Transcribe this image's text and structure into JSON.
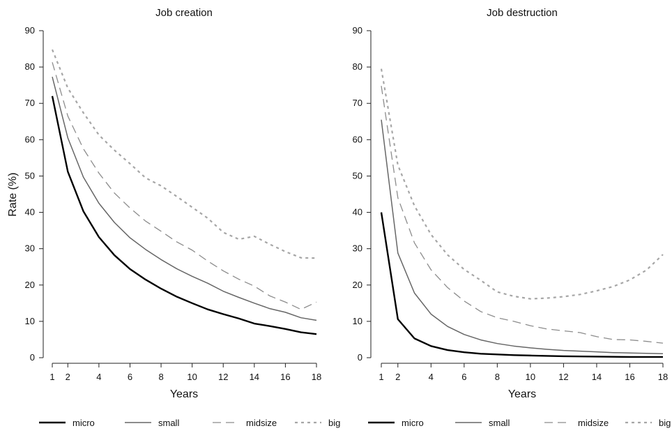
{
  "chart_data": [
    {
      "type": "line",
      "title": "Job creation",
      "xlabel": "Years",
      "ylabel": "Rate (%)",
      "xlim": [
        1,
        18
      ],
      "ylim": [
        0,
        90
      ],
      "x_ticks": [
        1,
        2,
        4,
        6,
        8,
        10,
        12,
        14,
        16,
        18
      ],
      "y_ticks": [
        0,
        10,
        20,
        30,
        40,
        50,
        60,
        70,
        80,
        90
      ],
      "grid": false,
      "legend": "bottom",
      "x": [
        1,
        2,
        3,
        4,
        5,
        6,
        7,
        8,
        9,
        10,
        11,
        12,
        13,
        14,
        15,
        16,
        17,
        18
      ],
      "series": [
        {
          "name": "micro",
          "color": "#000000",
          "style": "solid",
          "values": [
            72,
            51.2,
            40.3,
            33.2,
            28.2,
            24.4,
            21.5,
            19,
            16.8,
            15,
            13.3,
            12,
            10.8,
            9.4,
            8.7,
            7.9,
            7,
            6.5
          ]
        },
        {
          "name": "small",
          "color": "#666666",
          "style": "solid",
          "values": [
            77.3,
            60.5,
            49.7,
            42.5,
            37.2,
            33,
            29.8,
            27,
            24.5,
            22.4,
            20.5,
            18.3,
            16.6,
            15,
            13.5,
            12.5,
            11,
            10.3
          ]
        },
        {
          "name": "midsize",
          "color": "#8c8c8c",
          "style": "longdash",
          "values": [
            81.3,
            66.5,
            57.5,
            50.8,
            45.3,
            41.2,
            37.6,
            34.8,
            31.9,
            29.6,
            26.6,
            23.9,
            21.6,
            19.7,
            17,
            15.3,
            13.3,
            15.3
          ]
        },
        {
          "name": "big",
          "color": "#a6a6a6",
          "style": "dot",
          "values": [
            84.8,
            74.2,
            67.4,
            61.3,
            57.1,
            53.4,
            49.5,
            47.3,
            44.4,
            41.4,
            38.4,
            34.5,
            32.6,
            33.4,
            31.2,
            29.2,
            27.5,
            27.4
          ]
        }
      ]
    },
    {
      "type": "line",
      "title": "Job destruction",
      "xlabel": "Years",
      "ylabel": "",
      "xlim": [
        1,
        18
      ],
      "ylim": [
        0,
        90
      ],
      "x_ticks": [
        1,
        2,
        4,
        6,
        8,
        10,
        12,
        14,
        16,
        18
      ],
      "y_ticks": [
        0,
        10,
        20,
        30,
        40,
        50,
        60,
        70,
        80,
        90
      ],
      "grid": false,
      "legend": "bottom",
      "x": [
        1,
        2,
        3,
        4,
        5,
        6,
        7,
        8,
        9,
        10,
        11,
        12,
        13,
        14,
        15,
        16,
        17,
        18
      ],
      "series": [
        {
          "name": "micro",
          "color": "#000000",
          "style": "solid",
          "values": [
            40,
            10.6,
            5.3,
            3.2,
            2.1,
            1.5,
            1.1,
            0.9,
            0.7,
            0.6,
            0.5,
            0.4,
            0.35,
            0.3,
            0.25,
            0.2,
            0.2,
            0.2
          ]
        },
        {
          "name": "small",
          "color": "#666666",
          "style": "solid",
          "values": [
            65.5,
            28.8,
            17.8,
            12,
            8.6,
            6.4,
            4.9,
            3.9,
            3.2,
            2.7,
            2.3,
            2,
            1.8,
            1.6,
            1.4,
            1.3,
            1.2,
            1.1
          ]
        },
        {
          "name": "midsize",
          "color": "#8c8c8c",
          "style": "longdash",
          "values": [
            74.8,
            44,
            31.6,
            24.2,
            19.3,
            15.6,
            12.7,
            11,
            10,
            8.8,
            7.9,
            7.4,
            6.9,
            5.8,
            5,
            4.9,
            4.5,
            4
          ]
        },
        {
          "name": "big",
          "color": "#a6a6a6",
          "style": "dot",
          "values": [
            79.5,
            53,
            41.8,
            33.9,
            28.3,
            24.3,
            21.3,
            18.1,
            16.9,
            16.2,
            16.4,
            16.8,
            17.4,
            18.4,
            19.6,
            21.4,
            24.1,
            28.4
          ]
        }
      ]
    }
  ]
}
